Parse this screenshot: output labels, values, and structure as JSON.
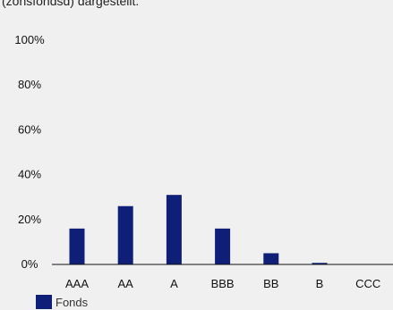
{
  "caption": "(zonsfondsd) dargestellt.",
  "colors": {
    "bar": "#0f1f78",
    "axis": "#111111"
  },
  "chart_data": {
    "type": "bar",
    "categories": [
      "AAA",
      "AA",
      "A",
      "BBB",
      "BB",
      "B",
      "CCC"
    ],
    "series": [
      {
        "name": "Fonds",
        "values": [
          16,
          26,
          31,
          16,
          5,
          0.7,
          0
        ]
      }
    ],
    "ylim": [
      0,
      100
    ],
    "yticks": [
      0,
      20,
      40,
      60,
      80,
      100
    ],
    "ytick_labels": [
      "0%",
      "20%",
      "40%",
      "60%",
      "80%",
      "100%"
    ],
    "title": "",
    "xlabel": "",
    "ylabel": "",
    "grid": false,
    "legend": "bottom-left"
  }
}
